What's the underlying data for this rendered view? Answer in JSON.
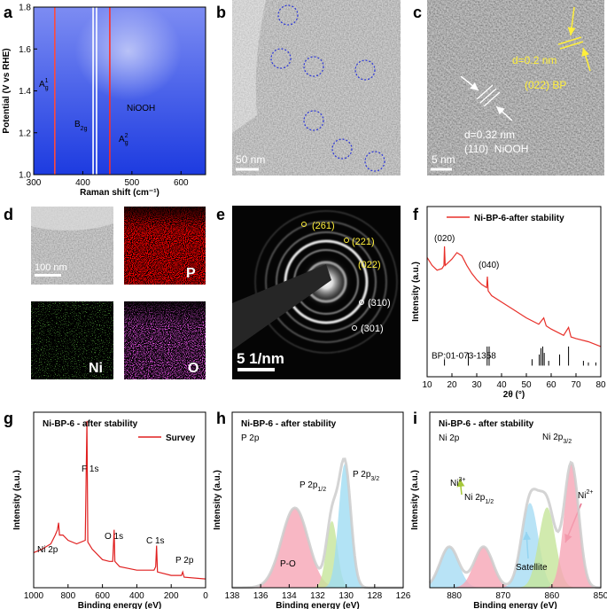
{
  "chart_data": [
    {
      "panel": "a",
      "type": "heatmap",
      "xlabel": "Raman shift (cm⁻¹)",
      "ylabel": "Potential (V vs RHE)",
      "xlim": [
        300,
        650
      ],
      "xticks": [
        300,
        400,
        500,
        600
      ],
      "ylim": [
        1.0,
        1.8
      ],
      "yticks": [
        {
          "value": 1.0,
          "label": "1.0"
        },
        {
          "value": 1.2,
          "label": "1.2"
        },
        {
          "value": 1.4,
          "label": "1.4"
        },
        {
          "value": 1.6,
          "label": "1.6"
        },
        {
          "value": 1.8,
          "label": "1.8"
        }
      ],
      "bands": {
        "x": [
          343,
          421,
          428,
          455
        ],
        "colors": [
          "#ff4a3a",
          "#ffffff",
          "#ffffff",
          "#ff2f24"
        ]
      },
      "annotations": [
        {
          "text": "A",
          "sub": "g",
          "sup": "1"
        },
        {
          "text": "B",
          "sub": "2g"
        },
        {
          "text": "A",
          "sub": "g",
          "sup": "2"
        },
        "NiOOH"
      ]
    },
    {
      "panel": "f",
      "type": "line",
      "xlabel": "2θ (°)",
      "ylabel": "Intensity (a.u.)",
      "xlim": [
        10,
        80
      ],
      "xticks": [
        10,
        20,
        30,
        40,
        50,
        60,
        70,
        80
      ],
      "ylim": [
        -0.07,
        1
      ],
      "x": [
        10,
        12,
        14,
        16,
        16.8,
        17,
        17.3,
        18,
        20,
        22,
        24,
        26,
        28,
        30,
        32,
        34,
        34.3,
        34.6,
        36,
        40,
        45,
        50,
        55,
        57,
        58,
        60,
        65,
        67,
        68,
        70,
        75,
        80
      ],
      "series": [
        {
          "name": "Ni-BP-6-after stability",
          "color": "#e8302a",
          "values": [
            0.68,
            0.63,
            0.6,
            0.61,
            0.63,
            0.75,
            0.63,
            0.64,
            0.67,
            0.71,
            0.69,
            0.63,
            0.58,
            0.54,
            0.51,
            0.49,
            0.56,
            0.47,
            0.44,
            0.4,
            0.35,
            0.3,
            0.26,
            0.3,
            0.25,
            0.23,
            0.19,
            0.24,
            0.18,
            0.17,
            0.15,
            0.12
          ]
        }
      ],
      "reference": {
        "name": "BP:01-073-1358",
        "color": "#000000",
        "x": [
          17,
          26.6,
          34.2,
          35,
          52.3,
          55.2,
          55.9,
          56.6,
          57.2,
          59,
          63.4,
          67,
          73,
          75,
          78
        ],
        "values": [
          0.04,
          0.08,
          0.12,
          0.12,
          0.04,
          0.07,
          0.11,
          0.12,
          0.08,
          0.03,
          0.07,
          0.12,
          0.03,
          0.02,
          0.02
        ]
      },
      "annotations": [
        "(020)",
        "(040)"
      ]
    },
    {
      "panel": "g",
      "type": "line",
      "title": "Ni-BP-6 - after stability",
      "xlabel": "Binding energy (eV)",
      "ylabel": "Intensity (a.u.)",
      "xlim": [
        1000,
        0
      ],
      "xticks": [
        1000,
        800,
        600,
        400,
        200,
        0
      ],
      "ylim": [
        0,
        1
      ],
      "x": [
        1000,
        950,
        900,
        875,
        862,
        855,
        850,
        830,
        800,
        750,
        700,
        690,
        685,
        660,
        600,
        560,
        540,
        532,
        528,
        500,
        400,
        300,
        290,
        285,
        280,
        200,
        140,
        133,
        125,
        0
      ],
      "series": [
        {
          "name": "Survey",
          "color": "#e02020",
          "values": [
            0.2,
            0.22,
            0.25,
            0.3,
            0.33,
            0.37,
            0.3,
            0.3,
            0.27,
            0.25,
            0.27,
            0.95,
            0.26,
            0.22,
            0.16,
            0.15,
            0.15,
            0.33,
            0.15,
            0.12,
            0.1,
            0.1,
            0.12,
            0.24,
            0.09,
            0.07,
            0.07,
            0.09,
            0.06,
            0.05
          ]
        }
      ],
      "annotations": [
        "F 1s",
        "O 1s",
        "C 1s",
        "P 2p",
        "Ni 2p"
      ]
    },
    {
      "panel": "h",
      "type": "xps",
      "title": "Ni-BP-6 - after stability",
      "subtitle": "P 2p",
      "xlabel": "Binding energy (eV)",
      "ylabel": "Intensity (a.u.)",
      "xlim": [
        138,
        126
      ],
      "xticks": [
        138,
        136,
        134,
        132,
        130,
        128,
        126
      ],
      "ylim": [
        0,
        1.1
      ],
      "components": [
        {
          "center": 133.6,
          "height": 0.5,
          "fwhm": 2.2,
          "color": "#f6a5b5"
        },
        {
          "center": 131.0,
          "height": 0.42,
          "fwhm": 0.9,
          "color": "#c5e59a"
        },
        {
          "center": 130.1,
          "height": 0.78,
          "fwhm": 1.0,
          "color": "#9fdcf2"
        }
      ],
      "annotations": [
        {
          "text": "P 2p",
          "sub": "1/2"
        },
        {
          "text": "P 2p",
          "sub": "3/2"
        },
        "P-O"
      ]
    },
    {
      "panel": "i",
      "type": "xps",
      "title": "Ni-BP-6 - after stability",
      "subtitle": "Ni 2p",
      "xlabel": "Binding energy (eV)",
      "ylabel": "Intensity (a.u.)",
      "xlim": [
        885,
        850
      ],
      "xticks": [
        880,
        870,
        860,
        850
      ],
      "ylim": [
        0,
        1.2
      ],
      "components": [
        {
          "center": 881,
          "height": 0.28,
          "fwhm": 4.5,
          "color": "#a6dcf4"
        },
        {
          "center": 874,
          "height": 0.28,
          "fwhm": 4.5,
          "color": "#f6a5b5"
        },
        {
          "center": 864.5,
          "height": 0.58,
          "fwhm": 4,
          "color": "#a6dcf4"
        },
        {
          "center": 861,
          "height": 0.55,
          "fwhm": 4,
          "color": "#c5e59a"
        },
        {
          "center": 856,
          "height": 0.85,
          "fwhm": 3.5,
          "color": "#f6a5b5"
        }
      ],
      "annotations": [
        {
          "text": "Ni 2p",
          "sub": "3/2"
        },
        {
          "text": "Ni",
          "sup": "3+"
        },
        {
          "text": "Ni 2p",
          "sub": "1/2"
        },
        {
          "text": "Ni",
          "sup": "2+"
        },
        "Satellite"
      ]
    }
  ],
  "images": [
    {
      "panel": "b",
      "scale_bar": "50 nm"
    },
    {
      "panel": "c",
      "labels": [
        "d=0.2 nm",
        "(022) BP",
        "d=0.32 nm",
        "(110)  NiOOH"
      ],
      "scale_bar": "5 nm"
    },
    {
      "panel": "d",
      "scale_bar": "100 nm",
      "maps": [
        "P",
        "Ni",
        "O"
      ]
    },
    {
      "panel": "e",
      "labels": [
        "(261)",
        "(221)",
        "(022)",
        "(310)",
        "(301)"
      ],
      "scale_bar": "5 1/nm"
    }
  ]
}
